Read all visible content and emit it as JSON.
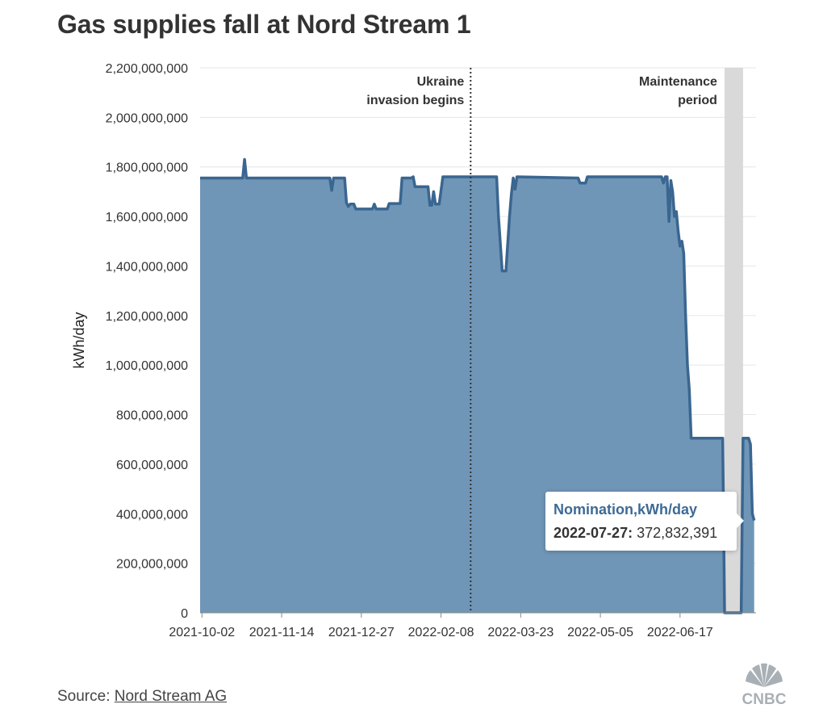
{
  "title": "Gas supplies fall at Nord Stream 1",
  "source": {
    "prefix": "Source: ",
    "link_text": "Nord Stream AG"
  },
  "brand": {
    "logo_text": "CNBC"
  },
  "colors": {
    "area_fill": "#7096b7",
    "line": "#3a6690",
    "maintenance_band": "#d9d9d9",
    "grid": "#e6e6e6"
  },
  "tooltip": {
    "series": "Nomination,kWh/day",
    "date": "2022-07-27:",
    "value": "372,832,391"
  },
  "chart_data": {
    "type": "area",
    "title": "Gas supplies fall at Nord Stream 1",
    "ylabel": "kWh/day",
    "xlabel": "",
    "xlim": [
      "2021-10-01",
      "2022-07-28"
    ],
    "ylim": [
      0,
      2200000000
    ],
    "yticks": [
      0,
      200000000,
      400000000,
      600000000,
      800000000,
      1000000000,
      1200000000,
      1400000000,
      1600000000,
      1800000000,
      2000000000,
      2200000000
    ],
    "ytick_labels": [
      "0",
      "200,000,000",
      "400,000,000",
      "600,000,000",
      "800,000,000",
      "1,000,000,000",
      "1,200,000,000",
      "1,400,000,000",
      "1,600,000,000",
      "1,800,000,000",
      "2,000,000,000",
      "2,200,000,000"
    ],
    "xticks": [
      "2021-10-02",
      "2021-11-14",
      "2021-12-27",
      "2022-02-08",
      "2022-03-23",
      "2022-05-05",
      "2022-06-17"
    ],
    "grid": "horizontal",
    "annotations": [
      {
        "type": "vline",
        "date": "2022-02-24",
        "label": [
          "Ukraine",
          "invasion begins"
        ]
      },
      {
        "type": "band",
        "start": "2022-07-11",
        "end": "2022-07-21",
        "label": [
          "Maintenance",
          "period"
        ]
      }
    ],
    "series": [
      {
        "name": "Nomination,kWh/day",
        "points": [
          [
            "2021-10-01",
            1755000000
          ],
          [
            "2021-10-24",
            1755000000
          ],
          [
            "2021-10-25",
            1830000000
          ],
          [
            "2021-10-26",
            1755000000
          ],
          [
            "2021-12-10",
            1755000000
          ],
          [
            "2021-12-11",
            1705000000
          ],
          [
            "2021-12-12",
            1755000000
          ],
          [
            "2021-12-18",
            1755000000
          ],
          [
            "2021-12-19",
            1655000000
          ],
          [
            "2021-12-20",
            1640000000
          ],
          [
            "2021-12-21",
            1650000000
          ],
          [
            "2021-12-23",
            1650000000
          ],
          [
            "2021-12-24",
            1630000000
          ],
          [
            "2022-01-02",
            1630000000
          ],
          [
            "2022-01-03",
            1650000000
          ],
          [
            "2022-01-04",
            1630000000
          ],
          [
            "2022-01-10",
            1630000000
          ],
          [
            "2022-01-11",
            1652000000
          ],
          [
            "2022-01-17",
            1652000000
          ],
          [
            "2022-01-18",
            1755000000
          ],
          [
            "2022-01-23",
            1755000000
          ],
          [
            "2022-01-24",
            1760000000
          ],
          [
            "2022-01-25",
            1720000000
          ],
          [
            "2022-02-01",
            1720000000
          ],
          [
            "2022-02-02",
            1645000000
          ],
          [
            "2022-02-03",
            1645000000
          ],
          [
            "2022-02-04",
            1700000000
          ],
          [
            "2022-02-05",
            1650000000
          ],
          [
            "2022-02-07",
            1650000000
          ],
          [
            "2022-02-09",
            1760000000
          ],
          [
            "2022-03-10",
            1760000000
          ],
          [
            "2022-03-11",
            1600000000
          ],
          [
            "2022-03-13",
            1380000000
          ],
          [
            "2022-03-15",
            1380000000
          ],
          [
            "2022-03-17",
            1600000000
          ],
          [
            "2022-03-18",
            1690000000
          ],
          [
            "2022-03-19",
            1755000000
          ],
          [
            "2022-03-20",
            1710000000
          ],
          [
            "2022-03-21",
            1760000000
          ],
          [
            "2022-04-23",
            1755000000
          ],
          [
            "2022-04-24",
            1735000000
          ],
          [
            "2022-04-27",
            1735000000
          ],
          [
            "2022-04-28",
            1760000000
          ],
          [
            "2022-06-07",
            1760000000
          ],
          [
            "2022-06-08",
            1735000000
          ],
          [
            "2022-06-09",
            1760000000
          ],
          [
            "2022-06-10",
            1760000000
          ],
          [
            "2022-06-11",
            1580000000
          ],
          [
            "2022-06-12",
            1745000000
          ],
          [
            "2022-06-13",
            1700000000
          ],
          [
            "2022-06-14",
            1600000000
          ],
          [
            "2022-06-15",
            1620000000
          ],
          [
            "2022-06-16",
            1540000000
          ],
          [
            "2022-06-17",
            1480000000
          ],
          [
            "2022-06-18",
            1500000000
          ],
          [
            "2022-06-19",
            1450000000
          ],
          [
            "2022-06-20",
            1200000000
          ],
          [
            "2022-06-21",
            1000000000
          ],
          [
            "2022-06-22",
            900000000
          ],
          [
            "2022-06-23",
            705000000
          ],
          [
            "2022-07-10",
            705000000
          ],
          [
            "2022-07-11",
            0
          ],
          [
            "2022-07-20",
            0
          ],
          [
            "2022-07-21",
            705000000
          ],
          [
            "2022-07-24",
            705000000
          ],
          [
            "2022-07-25",
            680000000
          ],
          [
            "2022-07-26",
            400000000
          ],
          [
            "2022-07-27",
            372832391
          ]
        ]
      }
    ]
  }
}
